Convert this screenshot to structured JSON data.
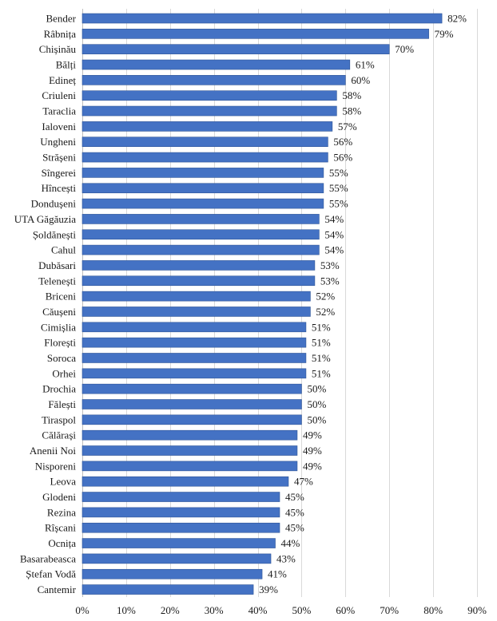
{
  "colors": {
    "bar_fill": "#4472c4",
    "bar_stroke": "#2f5597",
    "grid": "#d9d9d9",
    "text": "#1a1a1a"
  },
  "chart_data": {
    "type": "bar",
    "orientation": "horizontal",
    "title": "",
    "xlabel": "",
    "ylabel": "",
    "xlim": [
      0,
      90
    ],
    "x_ticks": [
      0,
      10,
      20,
      30,
      40,
      50,
      60,
      70,
      80,
      90
    ],
    "x_tick_labels": [
      "0%",
      "10%",
      "20%",
      "30%",
      "40%",
      "50%",
      "60%",
      "70%",
      "80%",
      "90%"
    ],
    "grid": true,
    "categories": [
      "Bender",
      "Râbnița",
      "Chișinău",
      "Bălți",
      "Edineț",
      "Criuleni",
      "Taraclia",
      "Ialoveni",
      "Ungheni",
      "Strășeni",
      "Sîngerei",
      "Hîncești",
      "Dondușeni",
      "UTA Găgăuzia",
      "Șoldănești",
      "Cahul",
      "Dubăsari",
      "Telenești",
      "Briceni",
      "Căușeni",
      "Cimișlia",
      "Florești",
      "Soroca",
      "Orhei",
      "Drochia",
      "Fălești",
      "Tiraspol",
      "Călărași",
      "Anenii Noi",
      "Nisporeni",
      "Leova",
      "Glodeni",
      "Rezina",
      "Rîșcani",
      "Ocnița",
      "Basarabeasca",
      "Ștefan Vodă",
      "Cantemir"
    ],
    "values": [
      82,
      79,
      70,
      61,
      60,
      58,
      58,
      57,
      56,
      56,
      55,
      55,
      55,
      54,
      54,
      54,
      53,
      53,
      52,
      52,
      51,
      51,
      51,
      51,
      50,
      50,
      50,
      49,
      49,
      49,
      47,
      45,
      45,
      45,
      44,
      43,
      41,
      39
    ],
    "value_labels": [
      "82%",
      "79%",
      "70%",
      "61%",
      "60%",
      "58%",
      "58%",
      "57%",
      "56%",
      "56%",
      "55%",
      "55%",
      "55%",
      "54%",
      "54%",
      "54%",
      "53%",
      "53%",
      "52%",
      "52%",
      "51%",
      "51%",
      "51%",
      "51%",
      "50%",
      "50%",
      "50%",
      "49%",
      "49%",
      "49%",
      "47%",
      "45%",
      "45%",
      "45%",
      "44%",
      "43%",
      "41%",
      "39%"
    ]
  }
}
